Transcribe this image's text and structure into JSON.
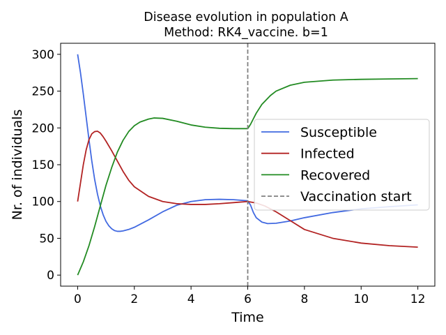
{
  "chart_data": {
    "type": "line",
    "title": "Disease evolution in population A",
    "subtitle": "Method: RK4_vaccine. b=1",
    "xlabel": "Time",
    "ylabel": "Nr. of individuals",
    "xlim": [
      -0.6,
      12.6
    ],
    "ylim": [
      -15,
      315
    ],
    "xticks": [
      0,
      2,
      4,
      6,
      8,
      10,
      12
    ],
    "yticks": [
      0,
      50,
      100,
      150,
      200,
      250,
      300
    ],
    "grid": false,
    "legend_position": "center-right",
    "vline": {
      "x": 6,
      "label": "Vaccination start",
      "color": "#808080",
      "style": "dashed"
    },
    "series": [
      {
        "name": "Susceptible",
        "color": "#4169e1",
        "x": [
          0,
          0.1,
          0.2,
          0.3,
          0.4,
          0.5,
          0.6,
          0.7,
          0.8,
          0.9,
          1.0,
          1.1,
          1.2,
          1.3,
          1.4,
          1.5,
          1.6,
          1.8,
          2.0,
          2.5,
          3.0,
          3.5,
          4.0,
          4.5,
          5.0,
          5.5,
          6.0,
          6.1,
          6.2,
          6.3,
          6.5,
          6.7,
          7.0,
          7.5,
          8.0,
          9.0,
          10.0,
          11.0,
          12.0
        ],
        "y": [
          300,
          275,
          246,
          215,
          184,
          155,
          130,
          110,
          94,
          82,
          73,
          67,
          63,
          60.5,
          59.5,
          59.5,
          60,
          62,
          65,
          75,
          86,
          95,
          100,
          102.5,
          103,
          102.5,
          101,
          95,
          85,
          78,
          72,
          70,
          70.5,
          73.5,
          78,
          85,
          90,
          93,
          95.5
        ]
      },
      {
        "name": "Infected",
        "color": "#b22222",
        "x": [
          0,
          0.1,
          0.2,
          0.3,
          0.4,
          0.5,
          0.6,
          0.7,
          0.8,
          0.9,
          1.0,
          1.2,
          1.4,
          1.6,
          1.8,
          2.0,
          2.5,
          3.0,
          3.5,
          4.0,
          4.5,
          5.0,
          5.5,
          6.0,
          6.3,
          6.6,
          7.0,
          7.5,
          8.0,
          9.0,
          10.0,
          11.0,
          12.0
        ],
        "y": [
          100,
          125,
          150,
          170,
          184,
          192,
          195,
          195.5,
          193,
          188,
          182,
          169,
          155,
          141,
          129,
          120,
          107,
          100,
          97,
          96,
          96,
          97,
          98.5,
          100,
          98,
          94,
          86,
          74,
          62,
          50,
          43.5,
          40,
          38
        ]
      },
      {
        "name": "Recovered",
        "color": "#228b22",
        "x": [
          0,
          0.2,
          0.4,
          0.6,
          0.8,
          1.0,
          1.2,
          1.4,
          1.6,
          1.8,
          2.0,
          2.2,
          2.5,
          2.7,
          3.0,
          3.5,
          4.0,
          4.5,
          5.0,
          5.5,
          6.0,
          6.1,
          6.3,
          6.5,
          6.8,
          7.0,
          7.5,
          8.0,
          9.0,
          10.0,
          11.0,
          12.0
        ],
        "y": [
          0,
          18,
          40,
          66,
          94,
          122,
          146,
          167,
          183,
          195,
          203,
          208,
          212,
          213.5,
          213,
          209,
          204,
          201,
          199.5,
          199,
          199,
          205,
          220,
          232,
          244,
          250,
          258,
          262,
          265,
          266,
          266.5,
          267
        ]
      }
    ]
  }
}
